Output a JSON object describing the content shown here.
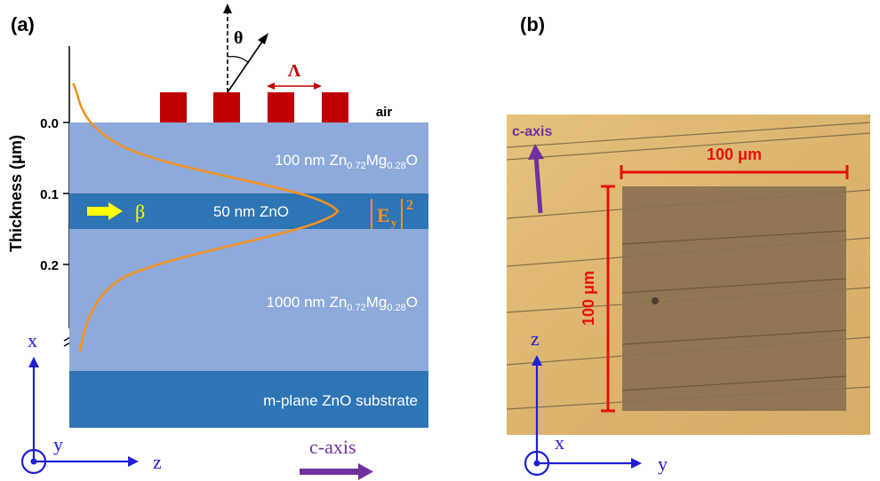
{
  "panel_a": {
    "label": "(a)",
    "y_axis_title": "Thickness (μm)",
    "y_ticks": [
      "0.0",
      "0.1",
      "0.2"
    ],
    "air_label": "air",
    "theta_label": "θ",
    "period_label": "Λ",
    "beta_label": "β",
    "field_label": "E",
    "field_sub": "y",
    "field_sup": "2",
    "layers": [
      {
        "thickness": "100 nm",
        "material": "Zn",
        "sub1": "0.72",
        "mid": "Mg",
        "sub2": "0.28",
        "end": "O"
      },
      {
        "thickness": "50 nm",
        "material": "ZnO"
      },
      {
        "thickness": "1000 nm",
        "material": "Zn",
        "sub1": "0.72",
        "mid": "Mg",
        "sub2": "0.28",
        "end": "O"
      },
      {
        "text": "m-plane ZnO substrate"
      }
    ],
    "coords": {
      "x": "x",
      "y": "y",
      "z": "z"
    },
    "c_axis_label": "c-axis"
  },
  "panel_b": {
    "label": "(b)",
    "c_axis_label": "c-axis",
    "width_label": "100 μm",
    "height_label": "100 μm",
    "coords": {
      "z": "z",
      "x": "x",
      "y": "y"
    }
  },
  "colors": {
    "light_layer": "#8eaadb",
    "dark_layer": "#2e75b6",
    "grating": "#c00000",
    "field_curve": "#f4911e",
    "beta_arrow": "#ffff00",
    "coord_axes": "#1f1fd6",
    "c_axis": "#7030a0",
    "scale_bar": "#e8100c",
    "micrograph_bg": "#ddb874",
    "pattern": "#8a7150"
  }
}
